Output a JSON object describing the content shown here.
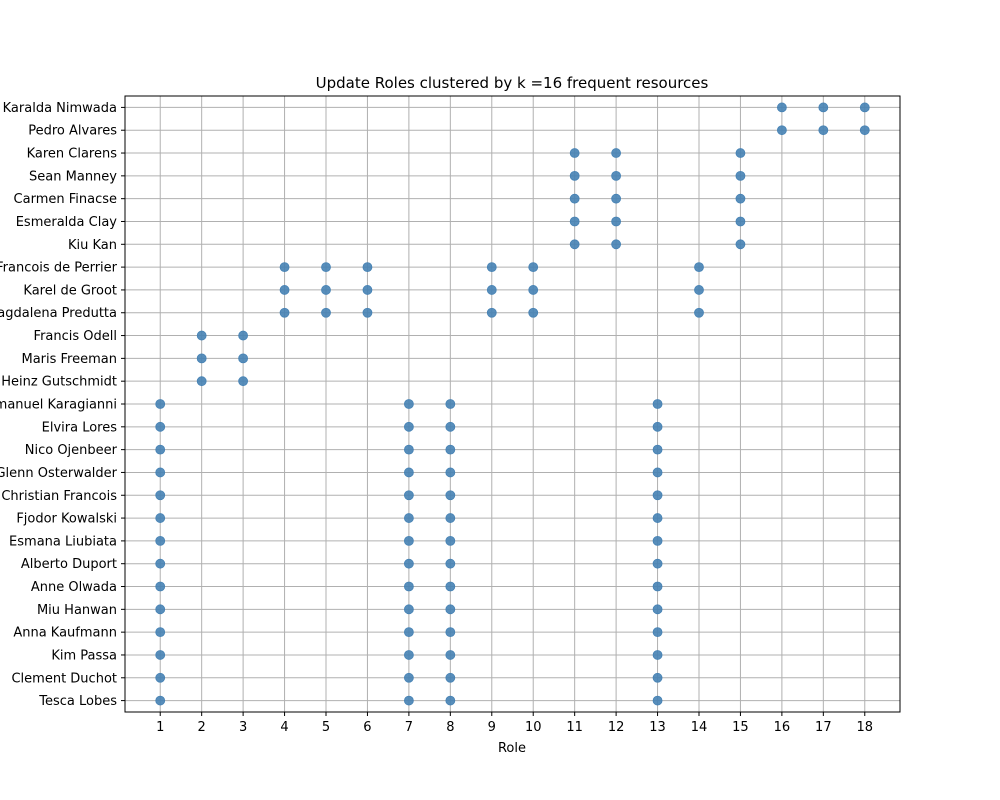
{
  "chart_data": {
    "type": "scatter",
    "title": "Update Roles clustered by k =16 frequent resources",
    "xlabel": "Role",
    "ylabel": "",
    "xlim": [
      0.15,
      18.85
    ],
    "x_ticks": [
      1,
      2,
      3,
      4,
      5,
      6,
      7,
      8,
      9,
      10,
      11,
      12,
      13,
      14,
      15,
      16,
      17,
      18
    ],
    "y_categories": [
      "Tesca Lobes",
      "Clement Duchot",
      "Kim Passa",
      "Anna Kaufmann",
      "Miu Hanwan",
      "Anne Olwada",
      "Alberto Duport",
      "Esmana Liubiata",
      "Fjodor Kowalski",
      "Christian Francois",
      "Glenn Osterwalder",
      "Nico Ojenbeer",
      "Elvira Lores",
      "Emanuel Karagianni",
      "Heinz Gutschmidt",
      "Maris Freeman",
      "Francis Odell",
      "Magdalena Predutta",
      "Karel de Groot",
      "Francois de Perrier",
      "Kiu Kan",
      "Esmeralda Clay",
      "Carmen Finacse",
      "Sean Manney",
      "Karen Clarens",
      "Pedro Alvares",
      "Karalda Nimwada"
    ],
    "marker_color": "#4682b4",
    "grid": true,
    "points": [
      {
        "user": "Karalda Nimwada",
        "roles": [
          16,
          17,
          18
        ]
      },
      {
        "user": "Pedro Alvares",
        "roles": [
          16,
          17,
          18
        ]
      },
      {
        "user": "Karen Clarens",
        "roles": [
          11,
          12,
          15
        ]
      },
      {
        "user": "Sean Manney",
        "roles": [
          11,
          12,
          15
        ]
      },
      {
        "user": "Carmen Finacse",
        "roles": [
          11,
          12,
          15
        ]
      },
      {
        "user": "Esmeralda Clay",
        "roles": [
          11,
          12,
          15
        ]
      },
      {
        "user": "Kiu Kan",
        "roles": [
          11,
          12,
          15
        ]
      },
      {
        "user": "Francois de Perrier",
        "roles": [
          4,
          5,
          6,
          9,
          10,
          14
        ]
      },
      {
        "user": "Karel de Groot",
        "roles": [
          4,
          5,
          6,
          9,
          10,
          14
        ]
      },
      {
        "user": "Magdalena Predutta",
        "roles": [
          4,
          5,
          6,
          9,
          10,
          14
        ]
      },
      {
        "user": "Francis Odell",
        "roles": [
          2,
          3
        ]
      },
      {
        "user": "Maris Freeman",
        "roles": [
          2,
          3
        ]
      },
      {
        "user": "Heinz Gutschmidt",
        "roles": [
          2,
          3
        ]
      },
      {
        "user": "Emanuel Karagianni",
        "roles": [
          1,
          7,
          8,
          13
        ]
      },
      {
        "user": "Elvira Lores",
        "roles": [
          1,
          7,
          8,
          13
        ]
      },
      {
        "user": "Nico Ojenbeer",
        "roles": [
          1,
          7,
          8,
          13
        ]
      },
      {
        "user": "Glenn Osterwalder",
        "roles": [
          1,
          7,
          8,
          13
        ]
      },
      {
        "user": "Christian Francois",
        "roles": [
          1,
          7,
          8,
          13
        ]
      },
      {
        "user": "Fjodor Kowalski",
        "roles": [
          1,
          7,
          8,
          13
        ]
      },
      {
        "user": "Esmana Liubiata",
        "roles": [
          1,
          7,
          8,
          13
        ]
      },
      {
        "user": "Alberto Duport",
        "roles": [
          1,
          7,
          8,
          13
        ]
      },
      {
        "user": "Anne Olwada",
        "roles": [
          1,
          7,
          8,
          13
        ]
      },
      {
        "user": "Miu Hanwan",
        "roles": [
          1,
          7,
          8,
          13
        ]
      },
      {
        "user": "Anna Kaufmann",
        "roles": [
          1,
          7,
          8,
          13
        ]
      },
      {
        "user": "Kim Passa",
        "roles": [
          1,
          7,
          8,
          13
        ]
      },
      {
        "user": "Clement Duchot",
        "roles": [
          1,
          7,
          8,
          13
        ]
      },
      {
        "user": "Tesca Lobes",
        "roles": [
          1,
          7,
          8,
          13
        ]
      }
    ]
  }
}
